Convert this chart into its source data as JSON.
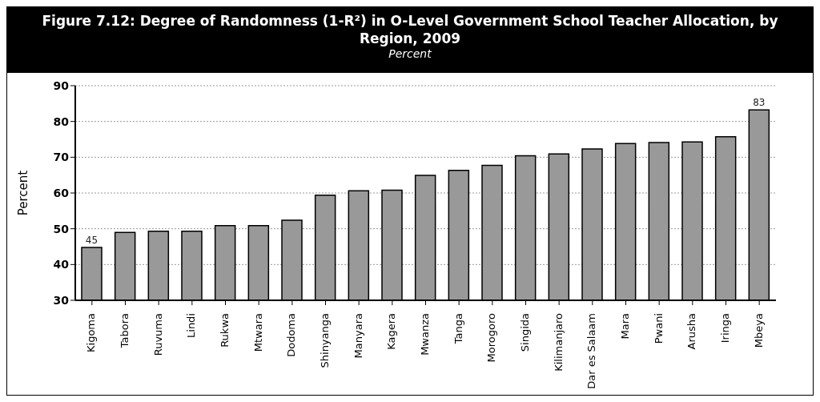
{
  "chart_data": {
    "type": "bar",
    "title": "Figure 7.12: Degree of Randomness (1-R²) in O-Level Government School Teacher Allocation, by Region, 2009",
    "subtitle": "Percent",
    "ylabel": "Percent",
    "categories": [
      "Kigoma",
      "Tabora",
      "Ruvuma",
      "Lindi",
      "Rukwa",
      "Mtwara",
      "Dodoma",
      "Shinyanga",
      "Manyara",
      "Kagera",
      "Mwanza",
      "Tanga",
      "Morogoro",
      "Singida",
      "Kilimanjaro",
      "Dar es Salaam",
      "Mara",
      "Pwani",
      "Arusha",
      "Iringa",
      "Mbeya"
    ],
    "values": [
      44.8,
      49.0,
      49.3,
      49.3,
      50.9,
      50.9,
      52.4,
      59.4,
      60.6,
      60.8,
      64.9,
      66.3,
      67.7,
      70.4,
      70.9,
      72.3,
      73.8,
      74.1,
      74.3,
      75.7,
      83.2
    ],
    "value_labels": [
      "45",
      null,
      null,
      null,
      null,
      null,
      null,
      null,
      null,
      null,
      null,
      null,
      null,
      null,
      null,
      null,
      null,
      null,
      null,
      null,
      "83"
    ],
    "color": "#999999",
    "ylim": [
      30,
      90
    ],
    "yticks": [
      30,
      40,
      50,
      60,
      70,
      80,
      90
    ],
    "grid": "y"
  }
}
